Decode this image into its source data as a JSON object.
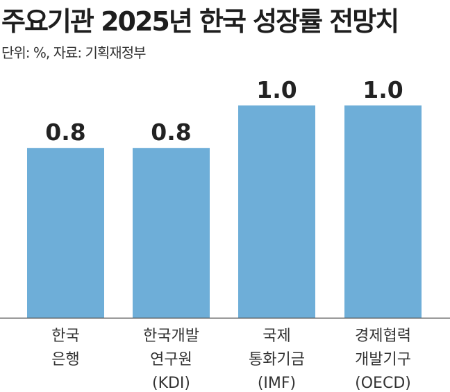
{
  "title": "주요기관 2025년 한국 성장률 전망치",
  "subtitle": "단위: %, 자료: 기획재정부",
  "colors": {
    "bar": "#6eaed8",
    "axis": "#555555"
  },
  "chart_data": {
    "type": "bar",
    "categories": [
      [
        "한국",
        "은행"
      ],
      [
        "한국개발",
        "연구원",
        "(KDI)"
      ],
      [
        "국제",
        "통화기금",
        "(IMF)"
      ],
      [
        "경제협력",
        "개발기구",
        "(OECD)"
      ]
    ],
    "values": [
      0.8,
      0.8,
      1.0,
      1.0
    ],
    "value_labels": [
      "0.8",
      "0.8",
      "1.0",
      "1.0"
    ],
    "ylim": [
      0,
      1.0
    ]
  }
}
